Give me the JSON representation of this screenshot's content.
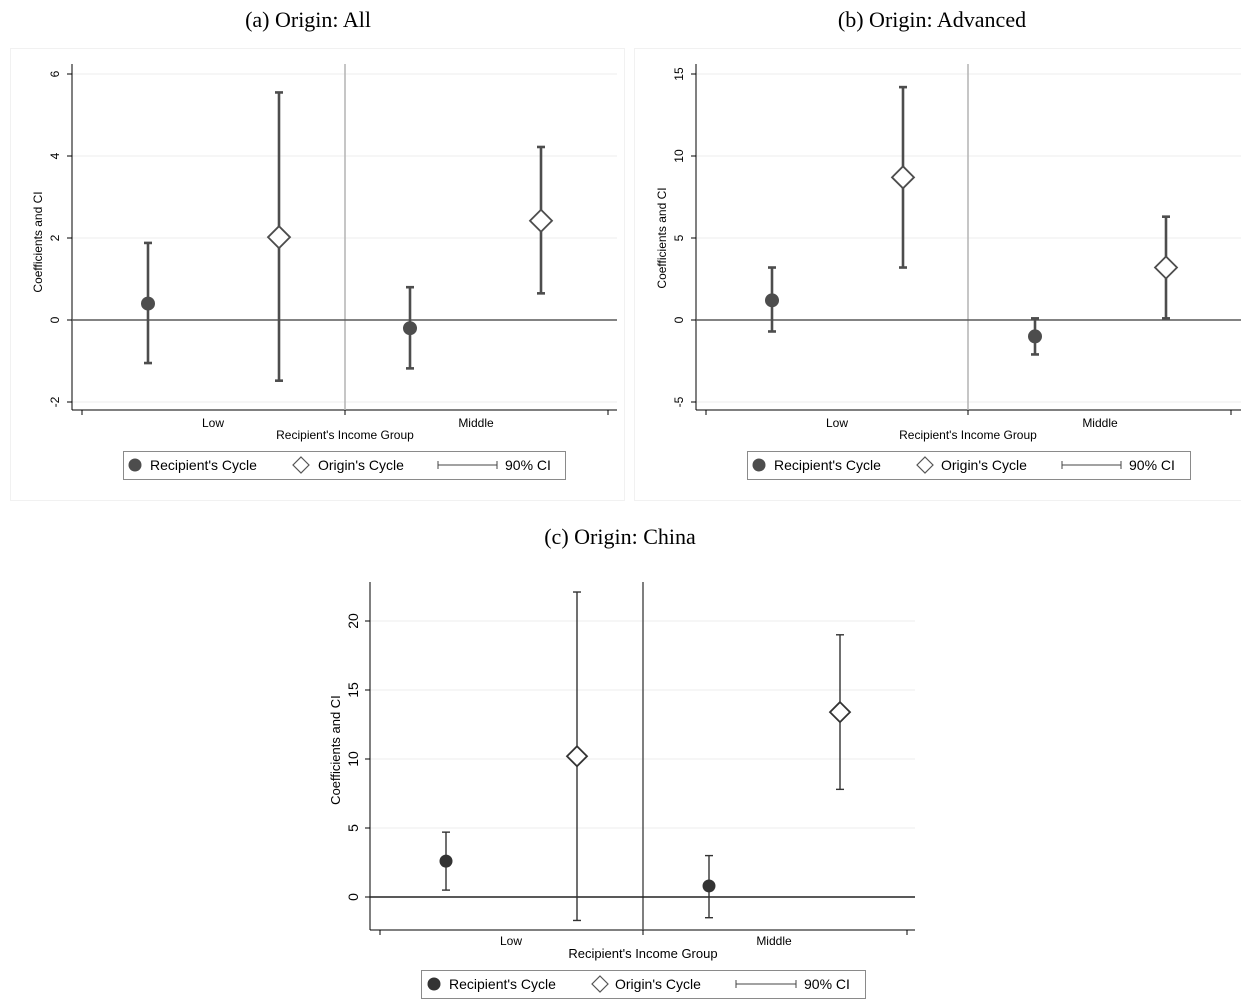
{
  "chart_data": [
    {
      "type": "scatter",
      "title": "(a) Origin: All",
      "xlabel": "Recipient's Income Group",
      "ylabel": "Coefficients and CI",
      "categories": [
        "Low",
        "Middle"
      ],
      "ylim": [
        -2.2,
        6.2
      ],
      "yticks": [
        -2,
        0,
        2,
        4,
        6
      ],
      "series": [
        {
          "name": "Recipient's Cycle",
          "marker": "circle",
          "x": [
            "Low",
            "Middle"
          ],
          "y": [
            0.4,
            -0.2
          ],
          "ci_low": [
            -1.05,
            -1.18
          ],
          "ci_high": [
            1.88,
            0.8
          ]
        },
        {
          "name": "Origin's Cycle",
          "marker": "diamond",
          "x": [
            "Low",
            "Middle"
          ],
          "y": [
            2.02,
            2.42
          ],
          "ci_low": [
            -1.48,
            0.65
          ],
          "ci_high": [
            5.55,
            4.22
          ]
        }
      ],
      "ci_label": "90% CI",
      "legend_position": "bottom",
      "grid": true
    },
    {
      "type": "scatter",
      "title": "(b) Origin: Advanced",
      "xlabel": "Recipient's Income Group",
      "ylabel": "Coefficients and CI",
      "categories": [
        "Low",
        "Middle"
      ],
      "ylim": [
        -5.6,
        15.6
      ],
      "yticks": [
        -5,
        0,
        5,
        10,
        15
      ],
      "series": [
        {
          "name": "Recipient's Cycle",
          "marker": "circle",
          "x": [
            "Low",
            "Middle"
          ],
          "y": [
            1.2,
            -1.0
          ],
          "ci_low": [
            -0.7,
            -2.1
          ],
          "ci_high": [
            3.2,
            0.1
          ]
        },
        {
          "name": "Origin's Cycle",
          "marker": "diamond",
          "x": [
            "Low",
            "Middle"
          ],
          "y": [
            8.7,
            3.2
          ],
          "ci_low": [
            3.2,
            0.1
          ],
          "ci_high": [
            14.2,
            6.3
          ]
        }
      ],
      "ci_label": "90% CI",
      "legend_position": "bottom",
      "grid": true
    },
    {
      "type": "scatter",
      "title": "(c) Origin: China",
      "xlabel": "Recipient's Income Group",
      "ylabel": "Coefficients and CI",
      "categories": [
        "Low",
        "Middle"
      ],
      "ylim": [
        -2.5,
        23
      ],
      "yticks": [
        0,
        5,
        10,
        15,
        20
      ],
      "series": [
        {
          "name": "Recipient's Cycle",
          "marker": "circle",
          "x": [
            "Low",
            "Middle"
          ],
          "y": [
            2.6,
            0.8
          ],
          "ci_low": [
            0.5,
            -1.5
          ],
          "ci_high": [
            4.7,
            3.0
          ]
        },
        {
          "name": "Origin's Cycle",
          "marker": "diamond",
          "x": [
            "Low",
            "Middle"
          ],
          "y": [
            10.2,
            13.4
          ],
          "ci_low": [
            -1.7,
            7.8
          ],
          "ci_high": [
            22.1,
            19.0
          ]
        }
      ],
      "ci_label": "90% CI",
      "legend_position": "bottom",
      "grid": true
    }
  ]
}
